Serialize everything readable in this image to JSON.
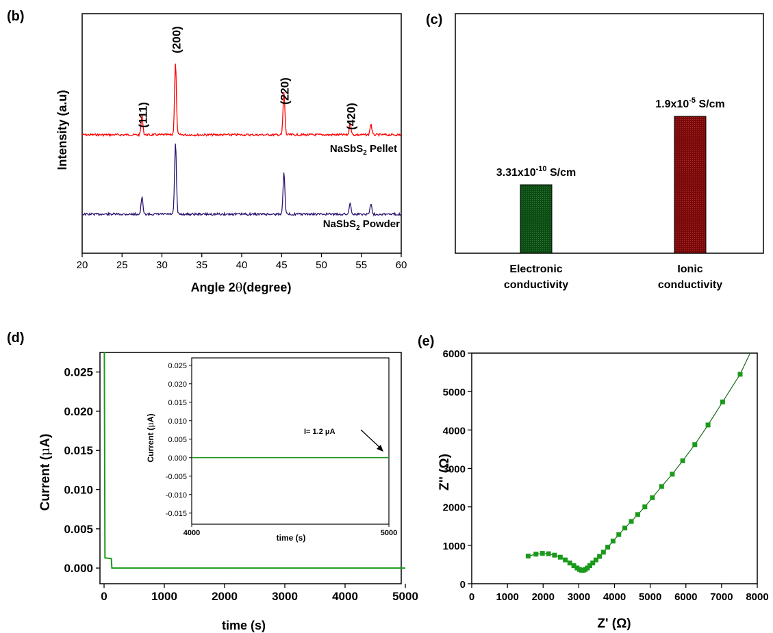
{
  "chart_data": [
    {
      "panel": "(b)",
      "type": "line",
      "xlabel_pre": "Angle 2",
      "xlabel_theta": "θ",
      "xlabel_post": "(degree)",
      "ylabel": "Intensity (a.u)",
      "xlim": [
        20,
        60
      ],
      "xticks": [
        "20",
        "25",
        "30",
        "35",
        "40",
        "45",
        "50",
        "55",
        "60"
      ],
      "colors": {
        "pellet": "#ff0000",
        "powder": "#2e1470"
      },
      "series": [
        {
          "name": "NaSbS",
          "sub": "2",
          "suffix": " Pellet",
          "key": "pellet",
          "peaks": [
            {
              "x": 27.5,
              "h": 0.27
            },
            {
              "x": 31.7,
              "h": 1.0
            },
            {
              "x": 45.3,
              "h": 0.6
            },
            {
              "x": 53.6,
              "h": 0.17
            },
            {
              "x": 56.2,
              "h": 0.15
            }
          ]
        },
        {
          "name": "NaSbS",
          "sub": "2",
          "suffix": " Powder",
          "key": "powder",
          "peaks": [
            {
              "x": 27.5,
              "h": 0.23
            },
            {
              "x": 31.7,
              "h": 0.96
            },
            {
              "x": 45.3,
              "h": 0.58
            },
            {
              "x": 53.6,
              "h": 0.16
            },
            {
              "x": 56.2,
              "h": 0.15
            }
          ]
        }
      ],
      "annotations": [
        {
          "text": "(111)",
          "x": 27.5
        },
        {
          "text": "(200)",
          "x": 31.7
        },
        {
          "text": "(220)",
          "x": 45.3
        },
        {
          "text": "(420)",
          "x": 53.6
        }
      ]
    },
    {
      "panel": "(c)",
      "type": "bar",
      "categories": [
        [
          "Electronic",
          "conductivity"
        ],
        [
          "Ionic",
          "conductivity"
        ]
      ],
      "values_s_per_cm": [
        3.31e-10,
        1.9e-05
      ],
      "bar_heights_relative": [
        0.5,
        1.0
      ],
      "data_labels": [
        {
          "mant": "3.31x10",
          "exp": "-10",
          "unit": " S/cm"
        },
        {
          "mant": "1.9x10",
          "exp": "-5",
          "unit": " S/cm"
        }
      ],
      "colors": [
        "#0d4d14",
        "#7a0a0a"
      ]
    },
    {
      "panel": "(d)",
      "type": "line",
      "xlabel": "time (s)",
      "ylabel_pre": "Current (",
      "ylabel_mu": "μ",
      "ylabel_post": "A)",
      "xlim": [
        0,
        5000
      ],
      "ylim": [
        -0.002,
        0.0275
      ],
      "xticks": [
        0,
        1000,
        2000,
        3000,
        4000,
        5000
      ],
      "yticks": [
        "0.000",
        "0.005",
        "0.010",
        "0.015",
        "0.020",
        "0.025"
      ],
      "color": "#1a9a1a",
      "points": [
        [
          0,
          0.0275
        ],
        [
          5,
          0.0275
        ],
        [
          15,
          0.0013
        ],
        [
          120,
          0.0012
        ],
        [
          130,
          0.0
        ],
        [
          5000,
          0.0
        ]
      ],
      "inset": {
        "xlabel": "time (s)",
        "ylabel_pre": "Current (",
        "ylabel_mu": "μ",
        "ylabel_post": "A)",
        "xlim": [
          4000,
          5000
        ],
        "ylim": [
          -0.018,
          0.027
        ],
        "xticks": [
          4000,
          5000
        ],
        "yticks": [
          "0.025",
          "0.020",
          "0.015",
          "0.010",
          "0.005",
          "0.000",
          "-0.005",
          "-0.010",
          "-0.015"
        ],
        "points": [
          [
            4000,
            0.0
          ],
          [
            5000,
            0.0
          ]
        ],
        "annotation": "I= 1.2 μA"
      }
    },
    {
      "panel": "(e)",
      "type": "scatter",
      "xlabel": "Z' (Ω)",
      "ylabel": "Z'' (Ω)",
      "xlim": [
        0,
        8000
      ],
      "ylim": [
        0,
        6000
      ],
      "xticks": [
        0,
        1000,
        2000,
        3000,
        4000,
        5000,
        6000,
        7000,
        8000
      ],
      "yticks": [
        0,
        1000,
        2000,
        3000,
        4000,
        5000,
        6000
      ],
      "color": "#1a9a1a",
      "points": [
        [
          1580,
          720
        ],
        [
          1800,
          770
        ],
        [
          1980,
          790
        ],
        [
          2150,
          780
        ],
        [
          2320,
          745
        ],
        [
          2480,
          690
        ],
        [
          2620,
          620
        ],
        [
          2750,
          540
        ],
        [
          2860,
          470
        ],
        [
          2950,
          410
        ],
        [
          3020,
          370
        ],
        [
          3080,
          350
        ],
        [
          3130,
          350
        ],
        [
          3180,
          370
        ],
        [
          3240,
          410
        ],
        [
          3310,
          470
        ],
        [
          3390,
          540
        ],
        [
          3480,
          620
        ],
        [
          3580,
          710
        ],
        [
          3690,
          820
        ],
        [
          3810,
          950
        ],
        [
          3960,
          1110
        ],
        [
          4120,
          1280
        ],
        [
          4290,
          1450
        ],
        [
          4470,
          1620
        ],
        [
          4650,
          1800
        ],
        [
          4850,
          2000
        ],
        [
          5060,
          2240
        ],
        [
          5320,
          2530
        ],
        [
          5620,
          2850
        ],
        [
          5910,
          3200
        ],
        [
          6250,
          3620
        ],
        [
          6620,
          4130
        ],
        [
          7030,
          4730
        ],
        [
          7520,
          5450
        ]
      ]
    }
  ]
}
